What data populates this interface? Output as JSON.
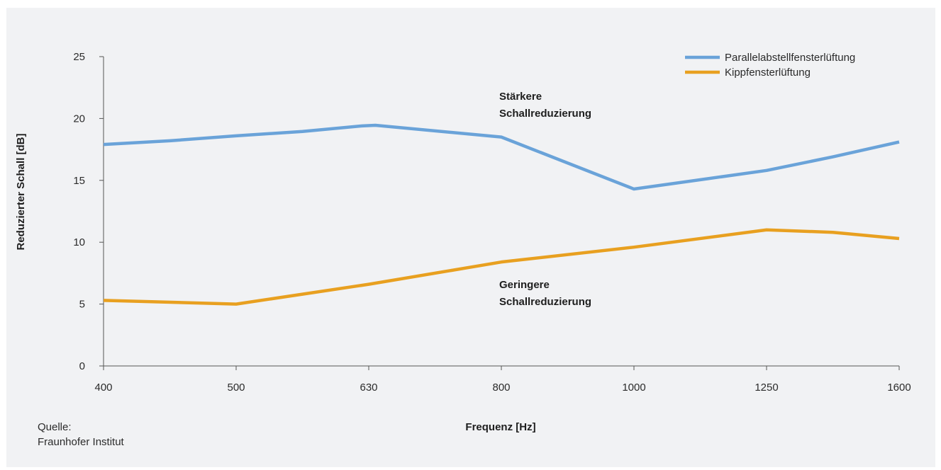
{
  "chart_data": {
    "type": "line",
    "title": "",
    "xlabel": "Frequenz [Hz]",
    "ylabel": "Reduzierter Schall [dB]",
    "categories": [
      "400",
      "500",
      "630",
      "800",
      "1000",
      "1250",
      "1600"
    ],
    "ylim": [
      0,
      25
    ],
    "yticks": [
      "0",
      "5",
      "10",
      "15",
      "20",
      "25"
    ],
    "grid": false,
    "legend_position": "top-right",
    "series": [
      {
        "name": "Parallelabstellfensterlüftung",
        "color": "#6aa3d9",
        "points": [
          [
            0,
            17.9
          ],
          [
            0.5,
            18.2
          ],
          [
            1,
            18.6
          ],
          [
            1.5,
            18.95
          ],
          [
            1.95,
            19.4
          ],
          [
            2.05,
            19.45
          ],
          [
            3,
            18.5
          ],
          [
            4,
            14.3
          ],
          [
            5,
            15.8
          ],
          [
            5.5,
            16.9
          ],
          [
            6,
            18.1
          ]
        ]
      },
      {
        "name": "Kippfensterlüftung",
        "color": "#e8a020",
        "points": [
          [
            0,
            5.3
          ],
          [
            1,
            5.0
          ],
          [
            1.5,
            5.8
          ],
          [
            2,
            6.6
          ],
          [
            3,
            8.4
          ],
          [
            4,
            9.6
          ],
          [
            5,
            11.0
          ],
          [
            5.5,
            10.8
          ],
          [
            6,
            10.3
          ]
        ]
      }
    ],
    "annotations": [
      {
        "lines": [
          "Stärkere",
          "Schallreduzierung"
        ],
        "x": 3,
        "y": 21.5
      },
      {
        "lines": [
          "Geringere",
          "Schallreduzierung"
        ],
        "x": 3,
        "y": 6.3
      }
    ]
  },
  "source": {
    "label": "Quelle:",
    "name": "Fraunhofer Institut"
  }
}
